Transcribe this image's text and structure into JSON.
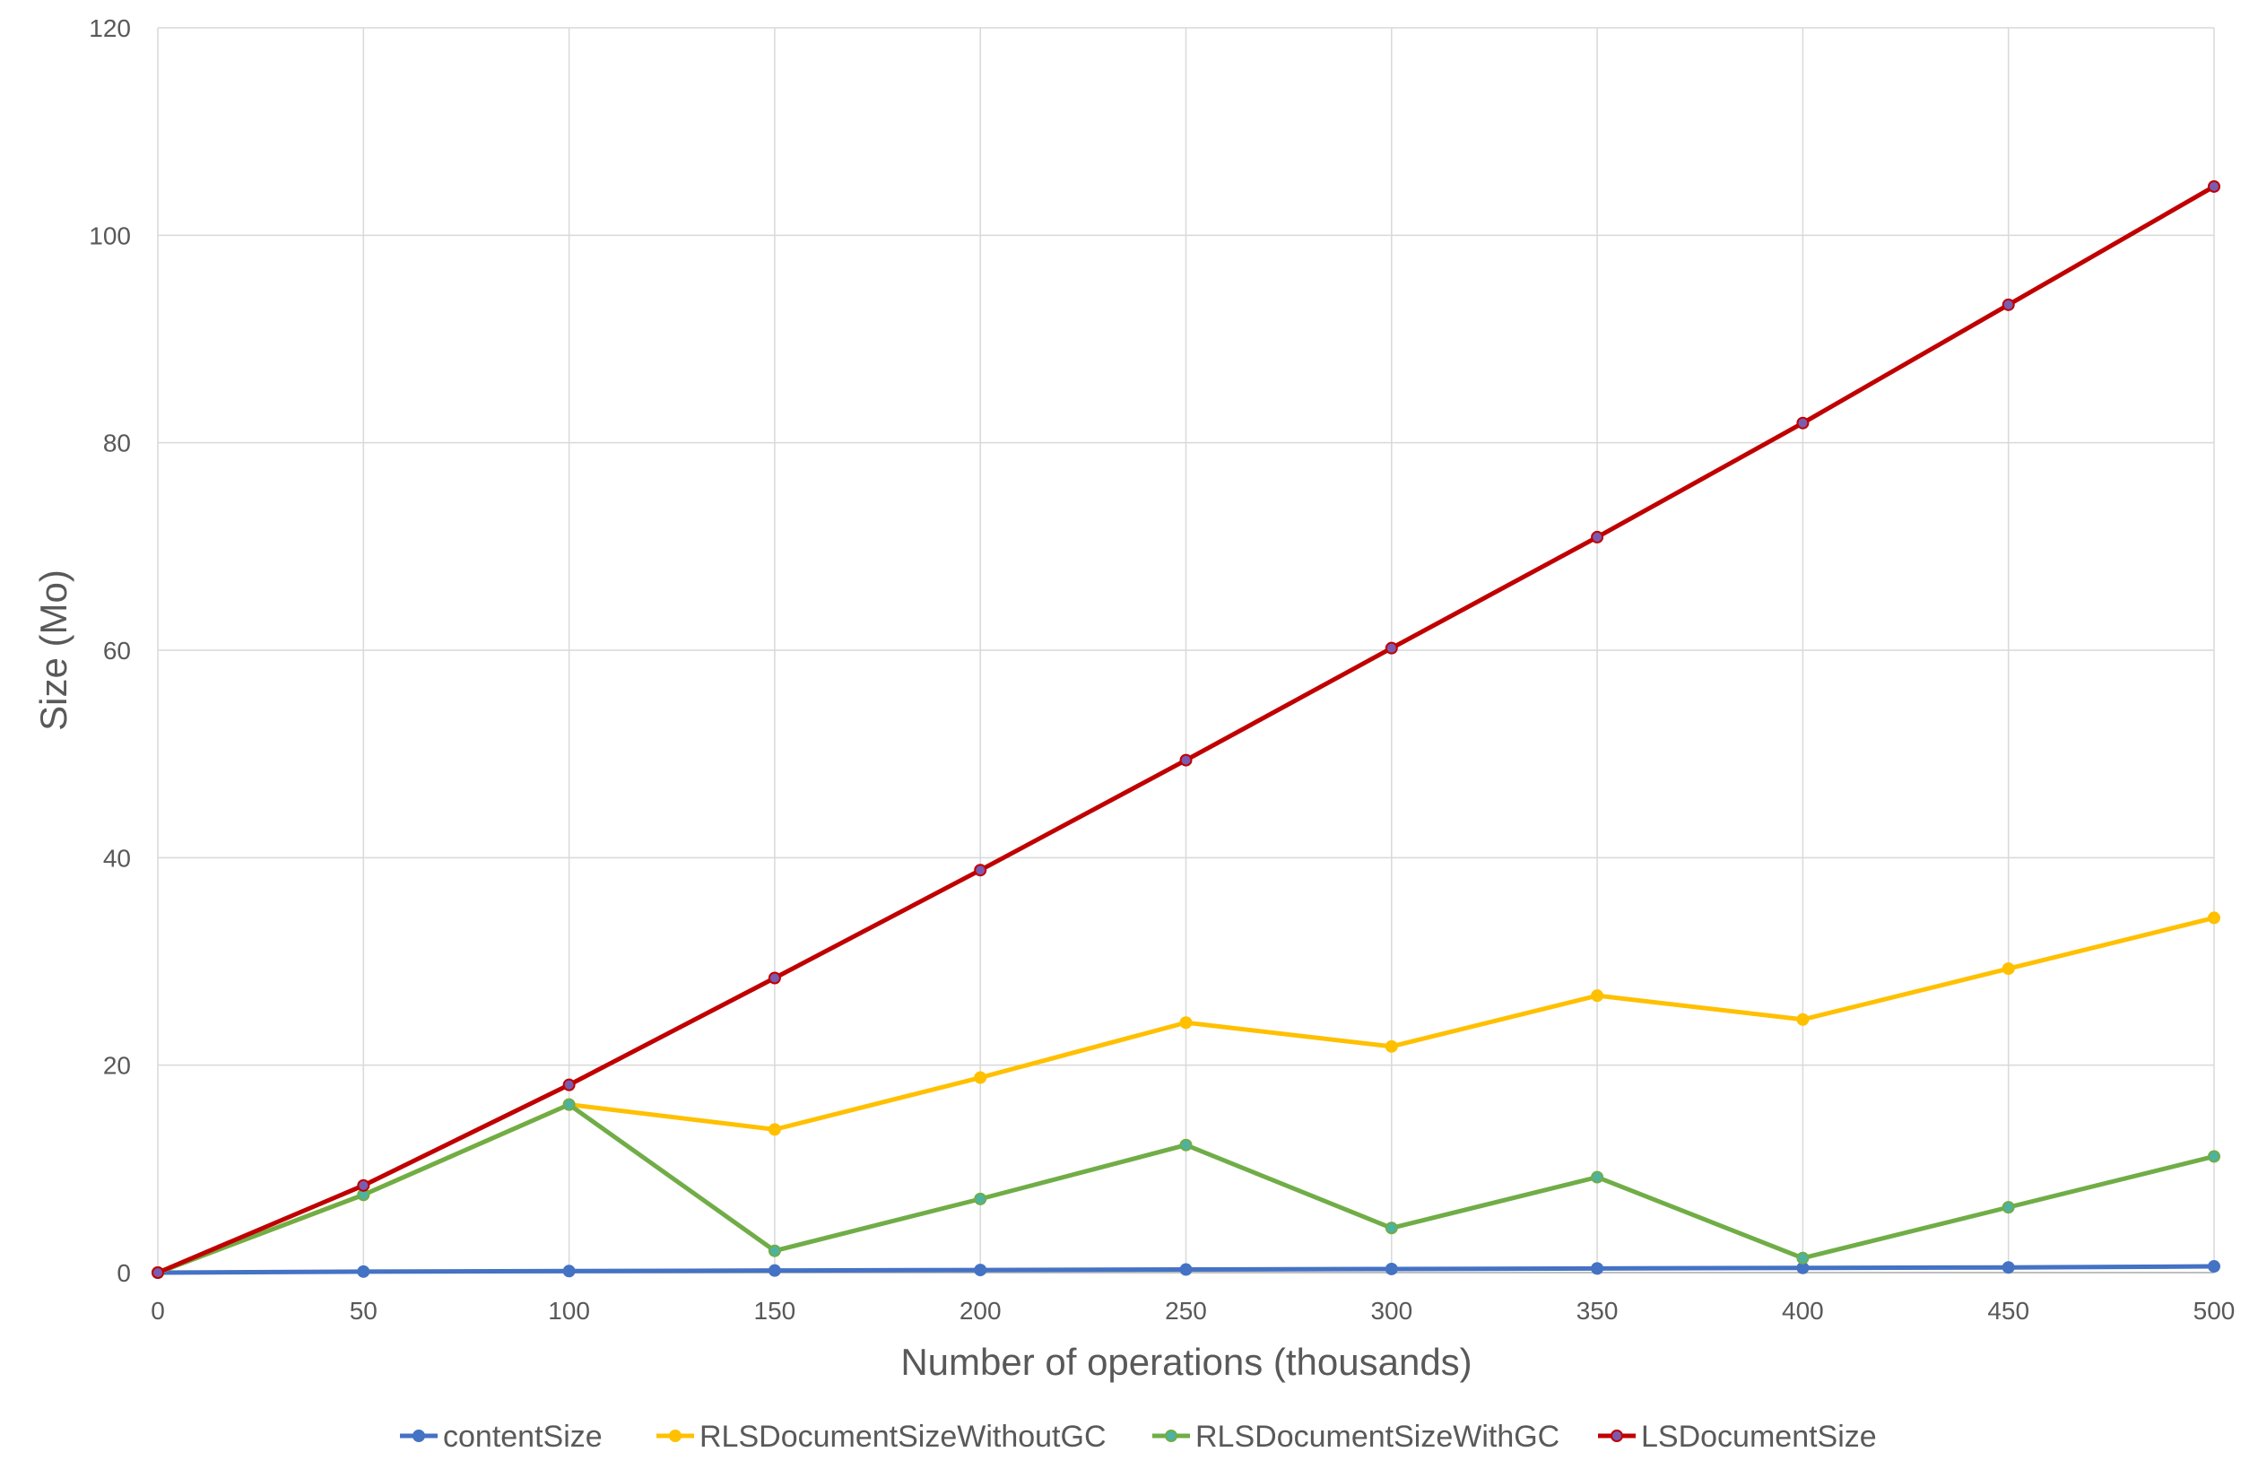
{
  "chart_data": {
    "type": "line",
    "title": "",
    "xlabel": "Number of operations (thousands)",
    "ylabel": "Size (Mo)",
    "x": [
      0,
      50,
      100,
      150,
      200,
      250,
      300,
      350,
      400,
      450,
      500
    ],
    "xlim": [
      0,
      500
    ],
    "ylim": [
      0,
      120
    ],
    "xticks": [
      "0",
      "50",
      "100",
      "150",
      "200",
      "250",
      "300",
      "350",
      "400",
      "450",
      "500"
    ],
    "yticks": [
      "0",
      "20",
      "40",
      "60",
      "80",
      "100",
      "120"
    ],
    "grid": true,
    "legend_position": "bottom",
    "series": [
      {
        "name": "contentSize",
        "color": "#4472c4",
        "marker_color": "#4472c4",
        "values": [
          0,
          0.1,
          0.15,
          0.2,
          0.25,
          0.3,
          0.35,
          0.4,
          0.45,
          0.5,
          0.6
        ]
      },
      {
        "name": "RLSDocumentSizeWithoutGC",
        "color": "#ffc000",
        "marker_color": "#ffc000",
        "values": [
          0,
          7.5,
          16.2,
          13.8,
          18.8,
          24.1,
          21.8,
          26.7,
          24.4,
          29.3,
          34.2
        ]
      },
      {
        "name": "RLSDocumentSizeWithGC",
        "color": "#70ad47",
        "marker_color": "#4db3a0",
        "values": [
          0,
          7.5,
          16.2,
          2.1,
          7.1,
          12.3,
          4.3,
          9.2,
          1.4,
          6.3,
          11.2
        ]
      },
      {
        "name": "LSDocumentSize",
        "color": "#c00000",
        "marker_color": "#7b5bb0",
        "values": [
          0,
          8.4,
          18.1,
          28.4,
          38.8,
          49.4,
          60.2,
          70.9,
          81.9,
          93.3,
          104.7
        ]
      }
    ]
  }
}
